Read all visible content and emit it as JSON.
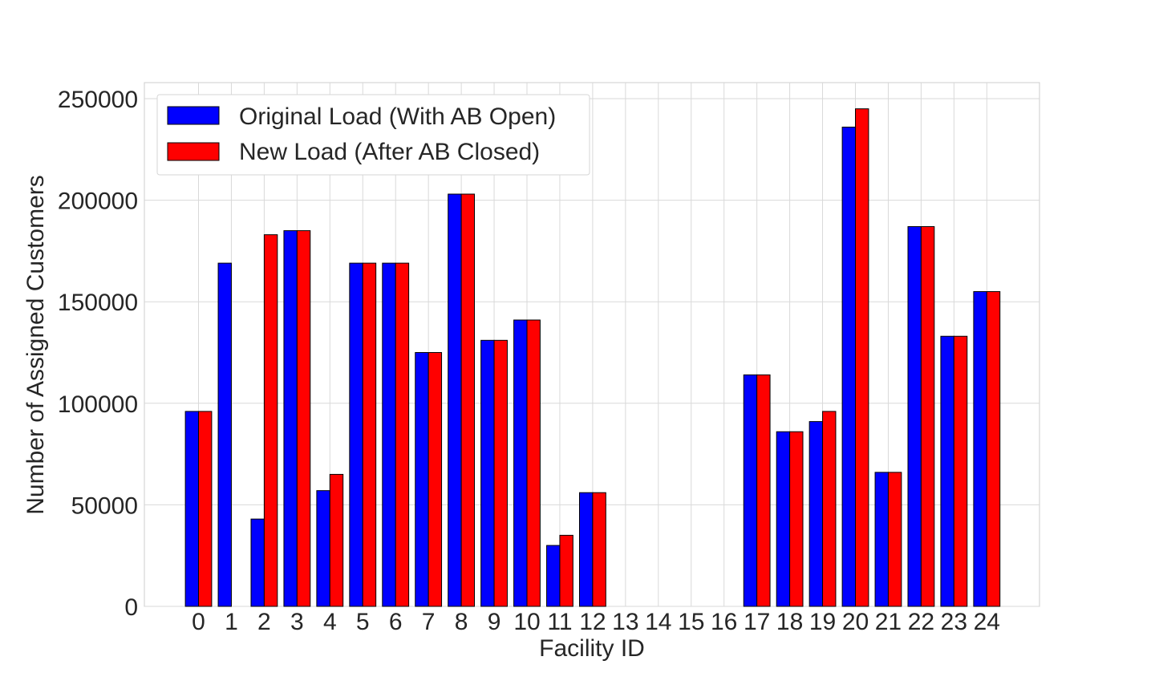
{
  "chart_data": {
    "type": "bar",
    "title": "",
    "xlabel": "Facility ID",
    "ylabel": "Number of Assigned Customers",
    "ylim": [
      0,
      258000
    ],
    "yticks": [
      0,
      50000,
      100000,
      150000,
      200000,
      250000
    ],
    "ytick_labels": [
      "0",
      "50000",
      "100000",
      "150000",
      "200000",
      "250000"
    ],
    "grid": true,
    "legend_position": "upper-left",
    "categories": [
      "0",
      "1",
      "2",
      "3",
      "4",
      "5",
      "6",
      "7",
      "8",
      "9",
      "10",
      "11",
      "12",
      "13",
      "14",
      "15",
      "16",
      "17",
      "18",
      "19",
      "20",
      "21",
      "22",
      "23",
      "24"
    ],
    "series": [
      {
        "name": "Original Load (With AB Open)",
        "color": "#0000ff",
        "values": [
          96000,
          169000,
          43000,
          185000,
          57000,
          169000,
          169000,
          125000,
          203000,
          131000,
          141000,
          30000,
          56000,
          0,
          0,
          0,
          0,
          114000,
          86000,
          91000,
          236000,
          66000,
          187000,
          133000,
          155000
        ]
      },
      {
        "name": "New Load (After AB Closed)",
        "color": "#ff0000",
        "values": [
          96000,
          0,
          183000,
          185000,
          65000,
          169000,
          169000,
          125000,
          203000,
          131000,
          141000,
          35000,
          56000,
          0,
          0,
          0,
          0,
          114000,
          86000,
          96000,
          245000,
          66000,
          187000,
          133000,
          155000
        ]
      }
    ]
  }
}
